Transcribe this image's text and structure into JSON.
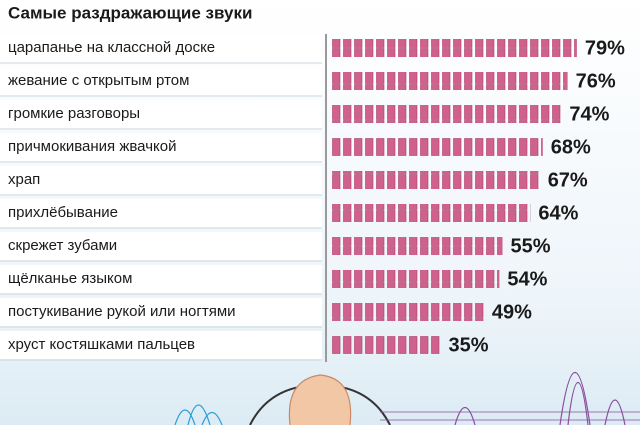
{
  "chart_data": {
    "type": "bar",
    "orientation": "horizontal",
    "title": "Самые раздражающие звуки",
    "categories": [
      "царапанье на классной доске",
      "жевание с открытым ртом",
      "громкие разговоры",
      "причмокивания жвачкой",
      "храп",
      "прихлёбывание",
      "скрежет зубами",
      "щёлканье языком",
      "постукивание рукой или ногтями",
      "хруст костяшками пальцев"
    ],
    "values": [
      79,
      76,
      74,
      68,
      67,
      64,
      55,
      54,
      49,
      35
    ],
    "value_labels": [
      "79%",
      "76%",
      "74%",
      "68%",
      "67%",
      "64%",
      "55%",
      "54%",
      "49%",
      "35%"
    ],
    "color": "#d0608c"
  }
}
